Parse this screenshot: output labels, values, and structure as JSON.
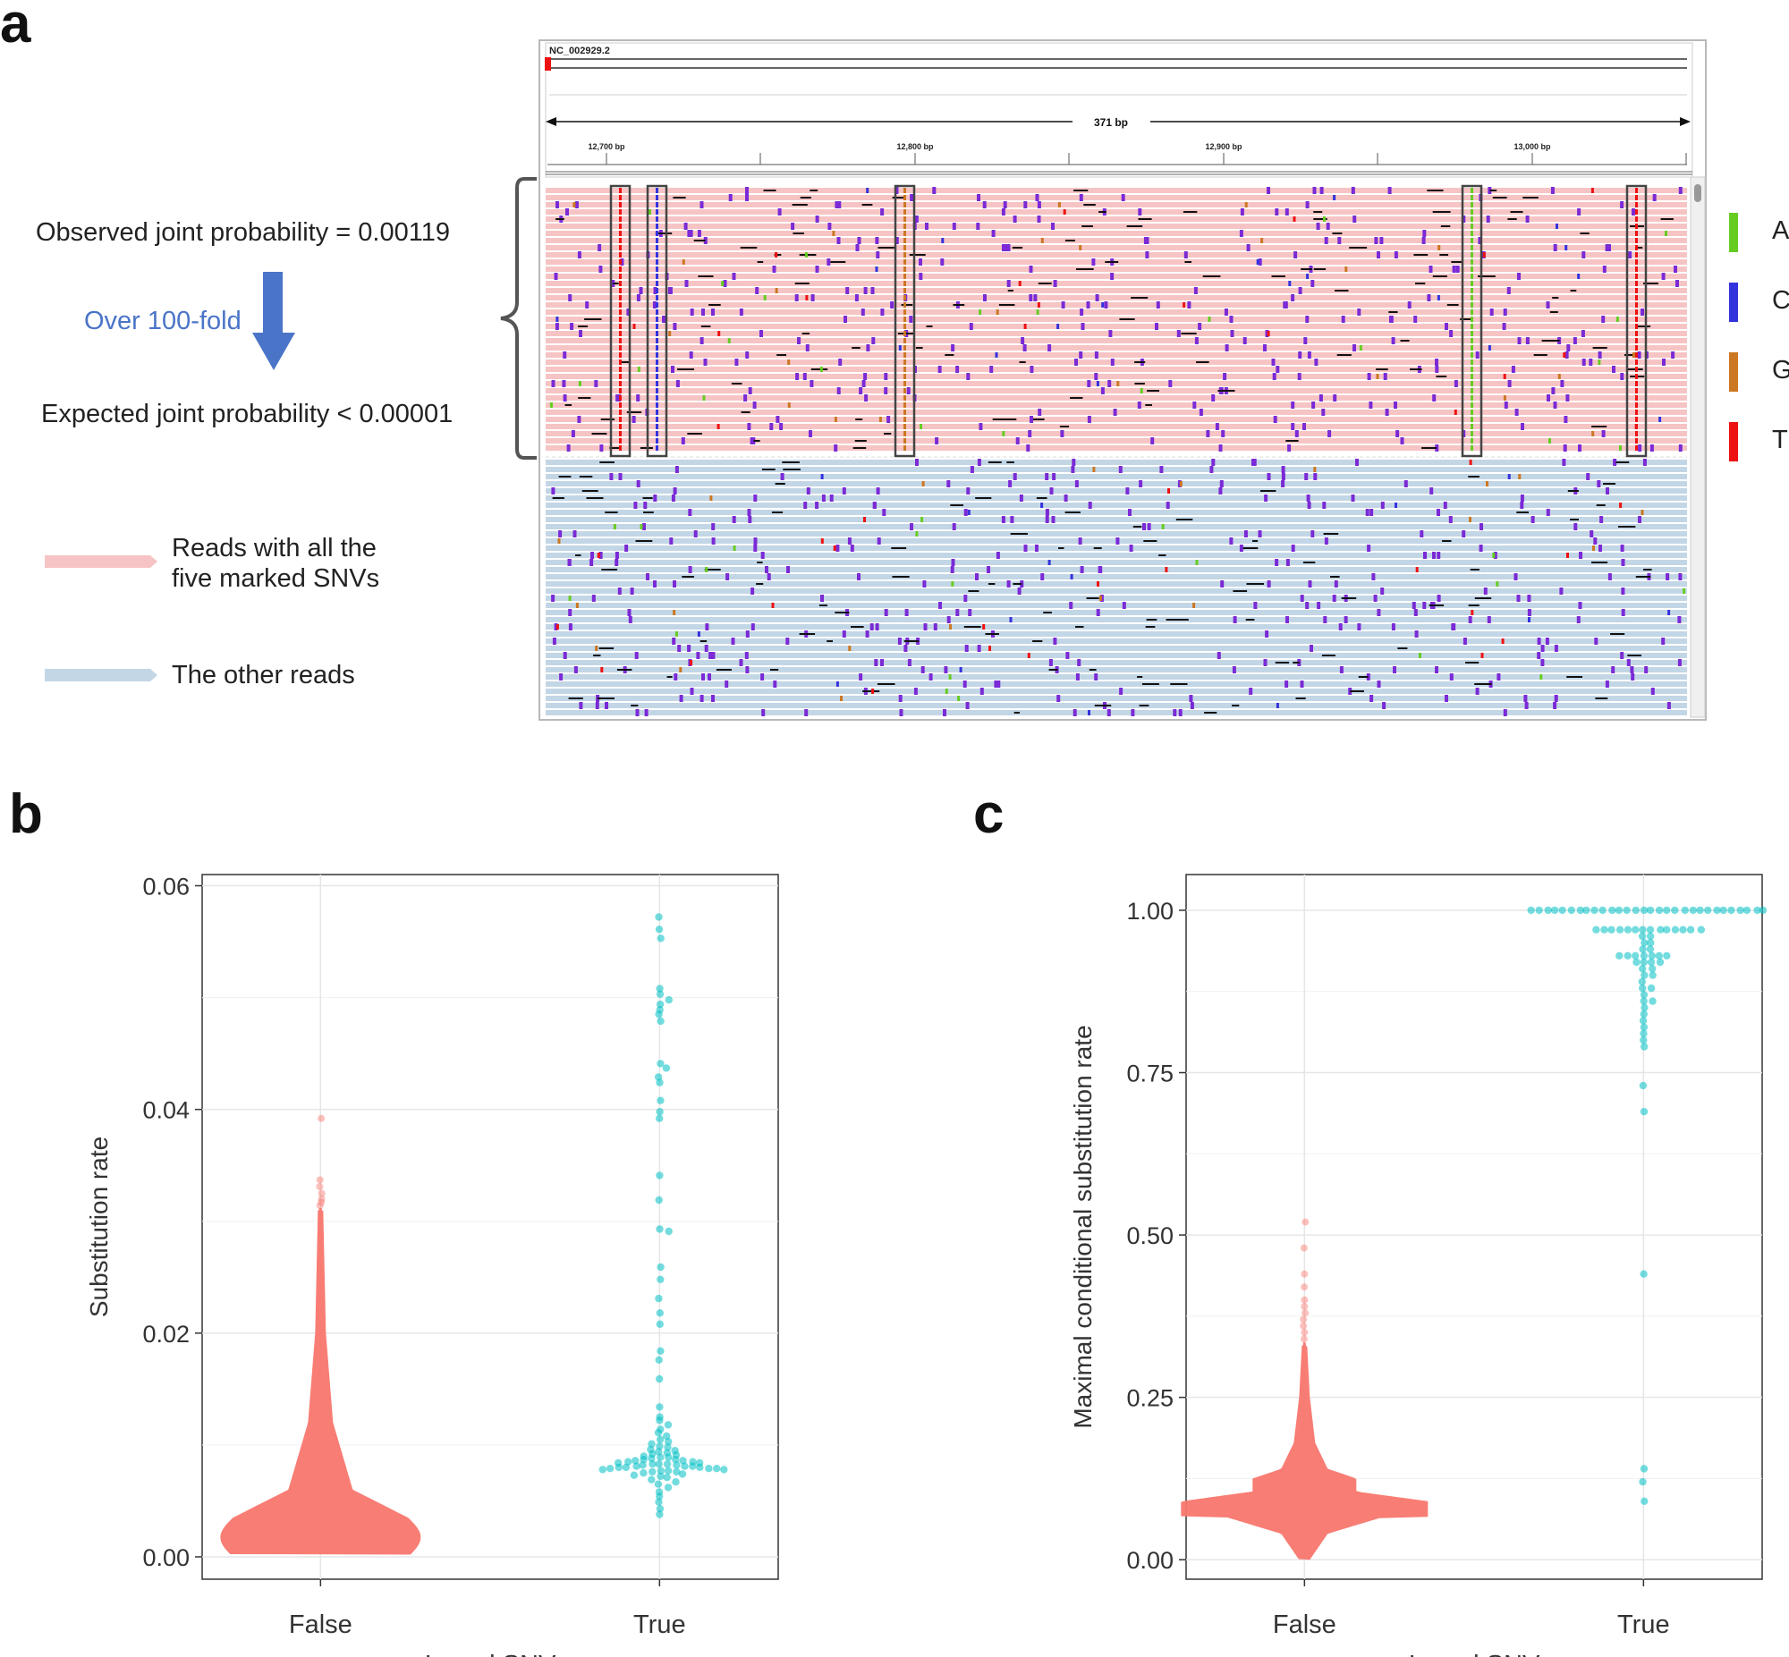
{
  "panel_a": {
    "letter": "a",
    "observed_text": "Observed joint probability = 0.00119",
    "fold_text": "Over 100-fold",
    "expected_text": "Expected joint probability < 0.00001",
    "legend_pink_text_line1": "Reads with all the",
    "legend_pink_text_line2": "five marked SNVs",
    "legend_blue_text": "The other reads",
    "igv": {
      "chrom": "NC_002929.2",
      "span_label": "371 bp",
      "ticks": [
        "12,700 bp",
        "12,800 bp",
        "12,900 bp",
        "13,000 bp"
      ]
    },
    "base_legend": [
      {
        "base": "A",
        "color": "#66cc22"
      },
      {
        "base": "C",
        "color": "#3333dd"
      },
      {
        "base": "G",
        "color": "#cc7722"
      },
      {
        "base": "T",
        "color": "#ee1111"
      }
    ],
    "colors": {
      "pink_read": "#f6c4c4",
      "blue_read": "#c2d6e6",
      "insertion": "#7b2ad6",
      "deletion": "#111111",
      "fold_text": "#4a74c8",
      "fold_arrow": "#4a74c8"
    }
  },
  "panel_b_letter": "b",
  "panel_c_letter": "c",
  "chart_data": [
    {
      "type": "scatter",
      "subtype": "beeswarm",
      "panel": "b",
      "title": "",
      "xlabel": "Is real SNV",
      "ylabel": "Substitution rate",
      "categories": [
        "False",
        "True"
      ],
      "ylim": [
        -0.002,
        0.061
      ],
      "yticks": [
        0.0,
        0.02,
        0.04,
        0.06
      ],
      "ytick_labels": [
        "0.00",
        "0.02",
        "0.04",
        "0.06"
      ],
      "series": [
        {
          "name": "False",
          "color": "#f8766d",
          "summary": "dense beeswarm, median ~0.002, max ~0.039"
        },
        {
          "name": "True",
          "color": "#00bfc4",
          "values": [
            0.0572,
            0.0561,
            0.0553,
            0.0508,
            0.0503,
            0.0498,
            0.0494,
            0.0489,
            0.0485,
            0.0479,
            0.0441,
            0.0437,
            0.0429,
            0.0424,
            0.0408,
            0.0398,
            0.0392,
            0.0341,
            0.0319,
            0.0293,
            0.0291,
            0.0259,
            0.0248,
            0.0231,
            0.0218,
            0.0208,
            0.0184,
            0.0176,
            0.0159,
            0.0134,
            0.0125,
            0.0122,
            0.0118,
            0.0114,
            0.0111,
            0.0108,
            0.0105,
            0.0103,
            0.0101,
            0.0099,
            0.0098,
            0.0096,
            0.0095,
            0.0094,
            0.0093,
            0.0092,
            0.0091,
            0.009,
            0.0089,
            0.0089,
            0.0088,
            0.0087,
            0.0087,
            0.0086,
            0.0086,
            0.0085,
            0.0085,
            0.0084,
            0.0084,
            0.0083,
            0.0083,
            0.0083,
            0.0082,
            0.0082,
            0.0081,
            0.0081,
            0.0081,
            0.008,
            0.008,
            0.008,
            0.0079,
            0.0079,
            0.0079,
            0.0078,
            0.0078,
            0.0077,
            0.0077,
            0.0076,
            0.0076,
            0.0075,
            0.0074,
            0.0073,
            0.0072,
            0.0071,
            0.0069,
            0.0067,
            0.0065,
            0.0062,
            0.0058,
            0.0054,
            0.0049,
            0.0043,
            0.0038
          ]
        }
      ]
    },
    {
      "type": "scatter",
      "subtype": "beeswarm",
      "panel": "c",
      "title": "",
      "xlabel": "Is real SNV",
      "ylabel": "Maximal conditional substitution rate",
      "categories": [
        "False",
        "True"
      ],
      "ylim": [
        -0.03,
        1.055
      ],
      "yticks": [
        0.0,
        0.25,
        0.5,
        0.75,
        1.0
      ],
      "ytick_labels": [
        "0.00",
        "0.25",
        "0.50",
        "0.75",
        "1.00"
      ],
      "series": [
        {
          "name": "False",
          "color": "#f8766d",
          "summary": "dense beeswarm, mode ~0.08, max ~0.52"
        },
        {
          "name": "True",
          "color": "#00bfc4",
          "values": [
            1.0,
            1.0,
            1.0,
            1.0,
            1.0,
            1.0,
            1.0,
            1.0,
            1.0,
            1.0,
            1.0,
            1.0,
            1.0,
            1.0,
            1.0,
            1.0,
            1.0,
            1.0,
            1.0,
            1.0,
            1.0,
            1.0,
            1.0,
            1.0,
            1.0,
            1.0,
            1.0,
            1.0,
            1.0,
            1.0,
            0.97,
            0.97,
            0.97,
            0.97,
            0.97,
            0.97,
            0.97,
            0.97,
            0.97,
            0.97,
            0.97,
            0.97,
            0.97,
            0.97,
            0.96,
            0.96,
            0.95,
            0.95,
            0.94,
            0.94,
            0.93,
            0.93,
            0.93,
            0.93,
            0.93,
            0.93,
            0.93,
            0.92,
            0.92,
            0.92,
            0.92,
            0.91,
            0.91,
            0.9,
            0.9,
            0.89,
            0.88,
            0.88,
            0.87,
            0.86,
            0.86,
            0.85,
            0.84,
            0.83,
            0.82,
            0.81,
            0.8,
            0.79,
            0.73,
            0.69,
            0.44,
            0.14,
            0.12,
            0.09
          ]
        }
      ]
    }
  ]
}
